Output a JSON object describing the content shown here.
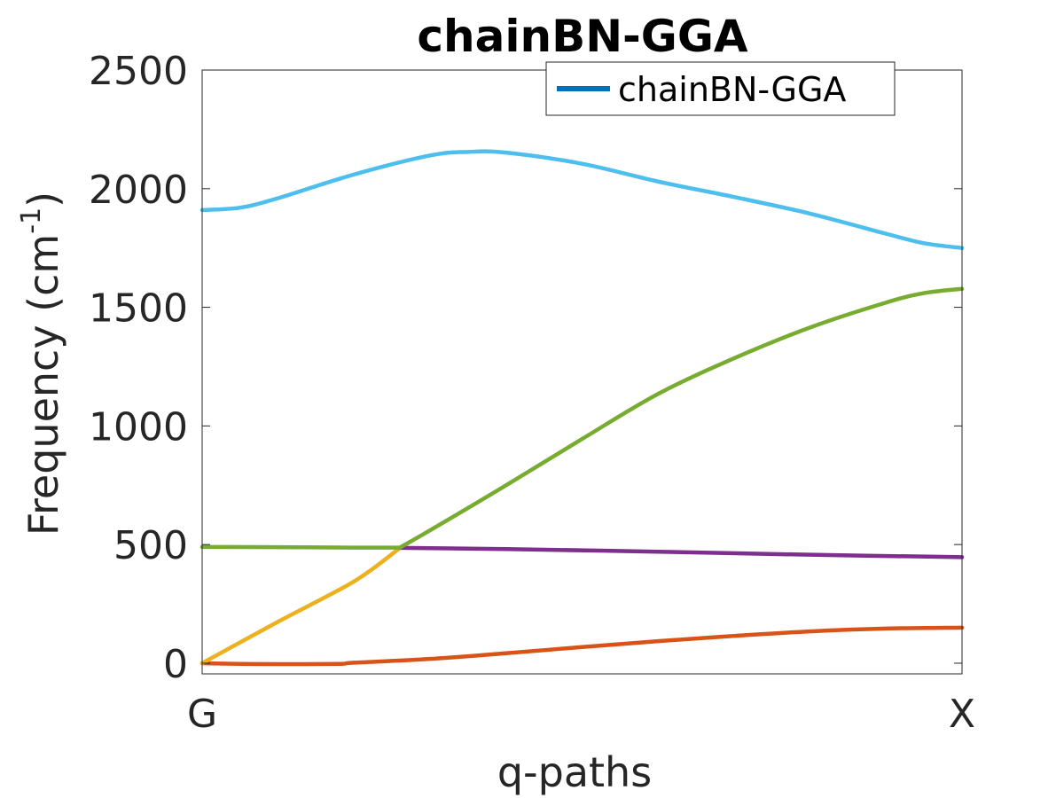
{
  "chart_data": {
    "type": "line",
    "title": "chainBN-GGA",
    "xlabel": "q-paths",
    "ylabel": "Frequency (cm",
    "ylabel_sup": "-1",
    "ylabel_close": ")",
    "xlim": [
      0,
      1
    ],
    "ylim": [
      -45,
      2500
    ],
    "x_ticks": [
      {
        "value": 0,
        "label": "G"
      },
      {
        "value": 1,
        "label": "X"
      }
    ],
    "y_ticks": [
      0,
      500,
      1000,
      1500,
      2000,
      2500
    ],
    "grid": false,
    "legend": {
      "position": "top-right",
      "entries": [
        "chainBN-GGA"
      ],
      "color": "#0072BD"
    },
    "series": [
      {
        "color": "#D95319",
        "x": [
          0,
          0.05,
          0.1,
          0.18,
          0.2,
          0.3,
          0.4,
          0.5,
          0.6,
          0.7,
          0.8,
          0.9,
          1.0
        ],
        "y": [
          0,
          -3,
          -4,
          -3,
          2,
          18,
          42,
          68,
          93,
          115,
          134,
          146,
          150
        ]
      },
      {
        "color": "#EDB120",
        "x": [
          0,
          0.1,
          0.2,
          0.26
        ],
        "y": [
          0,
          175,
          345,
          485
        ]
      },
      {
        "color": "#7E2F8E",
        "x": [
          0.26,
          0.4,
          0.6,
          0.8,
          1.0
        ],
        "y": [
          486,
          481,
          470,
          457,
          447
        ]
      },
      {
        "color": "#77AC30",
        "x": [
          0,
          0.1,
          0.2,
          0.26
        ],
        "y": [
          490,
          489,
          487,
          487
        ]
      },
      {
        "color": "#77AC30",
        "x": [
          0.26,
          0.3,
          0.4,
          0.5,
          0.6,
          0.7,
          0.8,
          0.9,
          0.95,
          1.0
        ],
        "y": [
          487,
          560,
          750,
          945,
          1135,
          1285,
          1415,
          1520,
          1560,
          1578
        ]
      },
      {
        "color": "#4DBEEE",
        "x": [
          0,
          0.05,
          0.1,
          0.2,
          0.3,
          0.35,
          0.4,
          0.5,
          0.6,
          0.7,
          0.8,
          0.9,
          0.95,
          1.0
        ],
        "y": [
          1910,
          1920,
          1960,
          2060,
          2140,
          2155,
          2152,
          2105,
          2030,
          1965,
          1895,
          1810,
          1770,
          1750
        ]
      }
    ]
  }
}
